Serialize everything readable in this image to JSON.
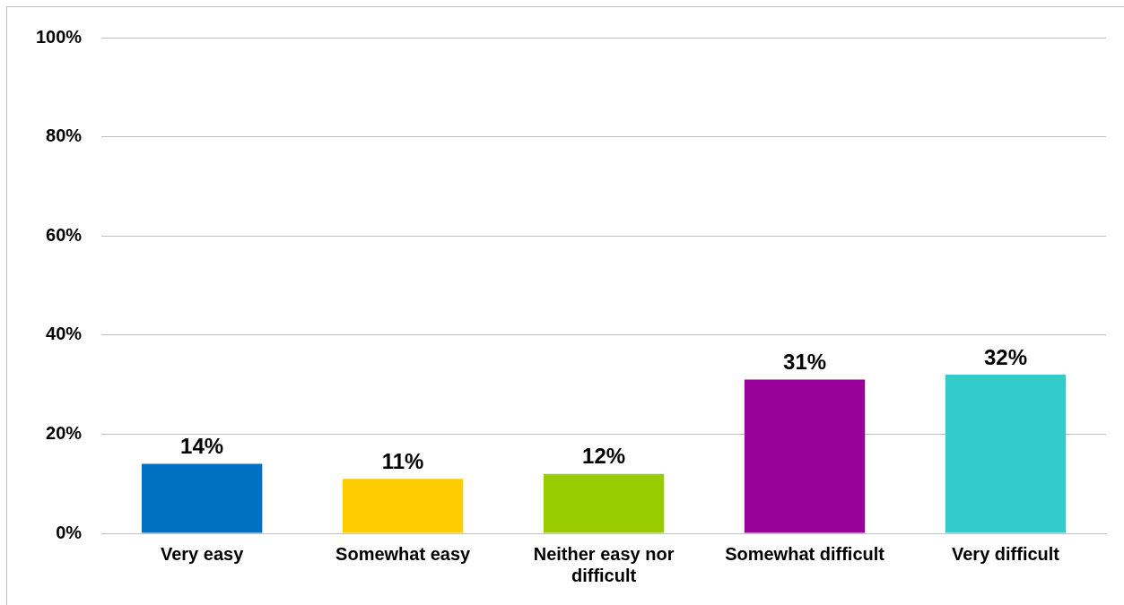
{
  "chart_data": {
    "type": "bar",
    "categories": [
      "Very easy",
      "Somewhat easy",
      "Neither easy nor difficult",
      "Somewhat difficult",
      "Very difficult"
    ],
    "values": [
      14,
      11,
      12,
      31,
      32
    ],
    "colors": [
      "#0070c0",
      "#ffcc00",
      "#99cc00",
      "#990099",
      "#33cccc"
    ],
    "value_labels": [
      "14%",
      "11%",
      "12%",
      "31%",
      "32%"
    ],
    "ylim": [
      0,
      100
    ],
    "yticks": [
      {
        "value": 0,
        "label": "0%"
      },
      {
        "value": 20,
        "label": "20%"
      },
      {
        "value": 40,
        "label": "40%"
      },
      {
        "value": 60,
        "label": "60%"
      },
      {
        "value": 80,
        "label": "80%"
      },
      {
        "value": 100,
        "label": "100%"
      }
    ],
    "grid": "y"
  }
}
